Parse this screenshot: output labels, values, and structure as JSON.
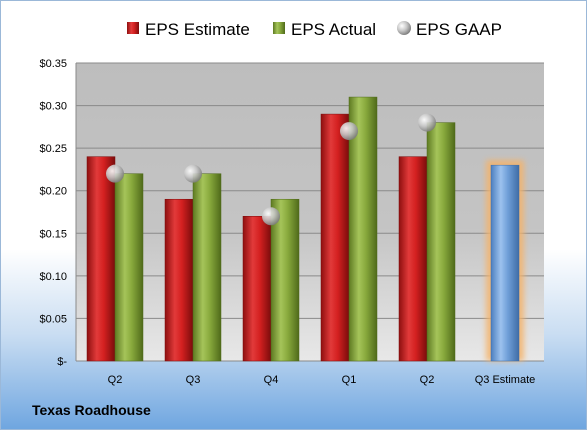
{
  "company": "Texas Roadhouse",
  "colors": {
    "estimate": "#d42020",
    "actual": "#88a93c",
    "gaap": "#b0b0b0",
    "forecast": "#6f9fd8",
    "forecast_glow": "#f5b36a"
  },
  "chart_data": {
    "type": "bar",
    "categories": [
      "Q2",
      "Q3",
      "Q4",
      "Q1",
      "Q2",
      "Q3 Estimate"
    ],
    "series": [
      {
        "name": "EPS Estimate",
        "values": [
          0.24,
          0.19,
          0.17,
          0.29,
          0.24,
          null
        ]
      },
      {
        "name": "EPS Actual",
        "values": [
          0.22,
          0.22,
          0.19,
          0.31,
          0.28,
          null
        ]
      },
      {
        "name": "EPS GAAP",
        "values": [
          0.22,
          0.22,
          0.17,
          0.27,
          0.28,
          null
        ]
      }
    ],
    "forecast": {
      "category": "Q3 Estimate",
      "value": 0.23
    },
    "y_ticks": [
      {
        "value": 0,
        "label": "$-"
      },
      {
        "value": 0.05,
        "label": "$0.05"
      },
      {
        "value": 0.1,
        "label": "$0.10"
      },
      {
        "value": 0.15,
        "label": "$0.15"
      },
      {
        "value": 0.2,
        "label": "$0.20"
      },
      {
        "value": 0.25,
        "label": "$0.25"
      },
      {
        "value": 0.3,
        "label": "$0.30"
      },
      {
        "value": 0.35,
        "label": "$0.35"
      }
    ],
    "ylim": [
      0,
      0.35
    ],
    "grid": true,
    "legend_position": "top"
  }
}
